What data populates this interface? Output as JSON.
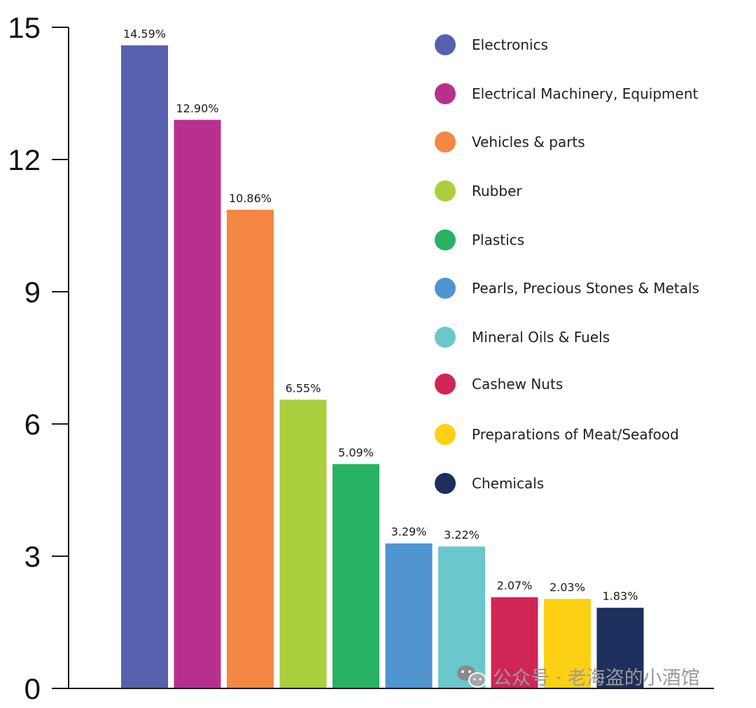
{
  "chart_data": {
    "type": "bar",
    "categories": [
      "Electronics",
      "Electrical Machinery, Equipment",
      "Vehicles & parts",
      "Rubber",
      "Plastics",
      "Pearls, Precious Stones & Metals",
      "Mineral Oils & Fuels",
      "Cashew Nuts",
      "Preparations of Meat/Seafood",
      "Chemicals"
    ],
    "values": [
      14.59,
      12.9,
      10.86,
      6.55,
      5.09,
      3.29,
      3.22,
      2.07,
      2.03,
      1.83
    ],
    "data_labels": [
      "14.59%",
      "12.90%",
      "10.86%",
      "6.55%",
      "5.09%",
      "3.29%",
      "3.22%",
      "2.07%",
      "2.03%",
      "1.83%"
    ],
    "colors": [
      "#5660ac",
      "#b7308e",
      "#f48743",
      "#abcf3d",
      "#27b363",
      "#5094d0",
      "#6ac8cc",
      "#d02656",
      "#fdd013",
      "#1d2f5c"
    ],
    "y_ticks": [
      "0",
      "3",
      "6",
      "9",
      "12",
      "15"
    ],
    "ylim": [
      0,
      15
    ],
    "grid": false,
    "legend_position": "top-right",
    "title": "",
    "xlabel": "",
    "ylabel": ""
  },
  "watermark": {
    "text": "公众号 · 老海盗的小酒馆",
    "icon": "wechat-icon"
  }
}
